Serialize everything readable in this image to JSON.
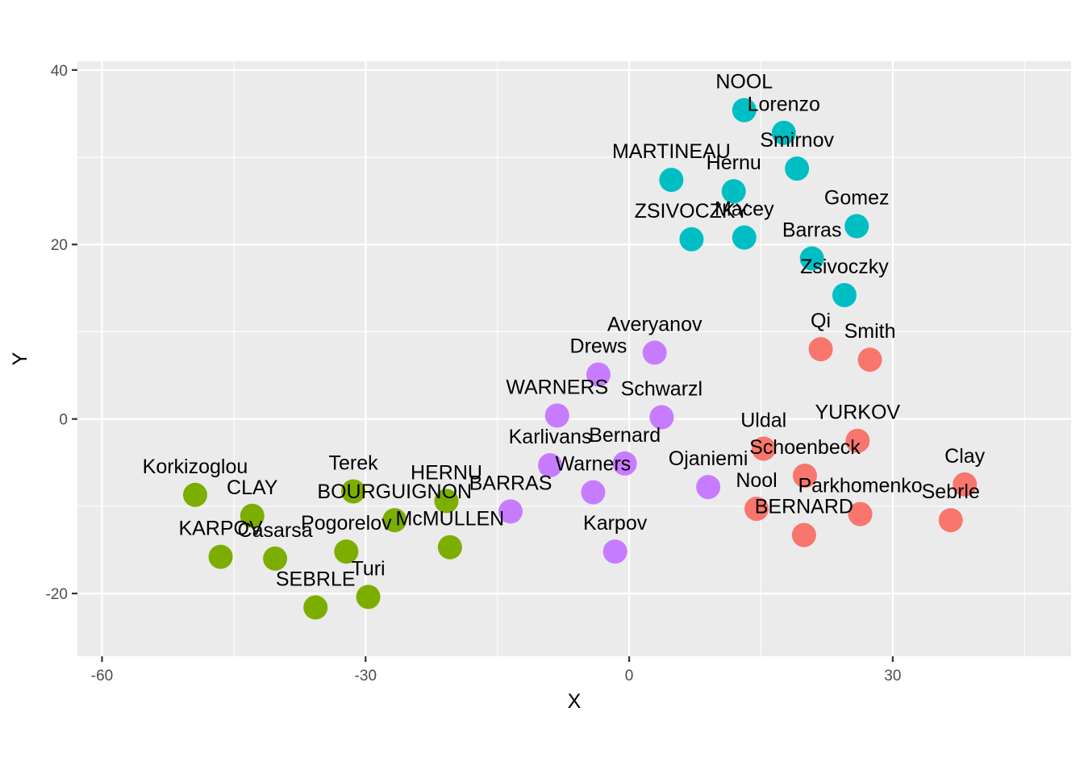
{
  "chart_data": {
    "type": "scatter",
    "xlabel": "X",
    "ylabel": "Y",
    "xlim": [
      -62.8,
      50.3
    ],
    "ylim": [
      -27.2,
      41.0
    ],
    "xticks": [
      -60,
      -30,
      0,
      30
    ],
    "yticks": [
      -20,
      0,
      20,
      40
    ],
    "grid": true,
    "legend": "none",
    "groups": [
      {
        "color": "#F8766D",
        "points": [
          {
            "label": "Qi",
            "x": 21.8,
            "y": 8.0
          },
          {
            "label": "Smith",
            "x": 27.4,
            "y": 6.8
          },
          {
            "label": "Uldal",
            "x": 15.3,
            "y": -3.4
          },
          {
            "label": "YURKOV",
            "x": 26.0,
            "y": -2.5
          },
          {
            "label": "Schoenbeck",
            "x": 20.0,
            "y": -6.5
          },
          {
            "label": "Clay",
            "x": 38.2,
            "y": -7.5
          },
          {
            "label": "Nool",
            "x": 14.5,
            "y": -10.3
          },
          {
            "label": "Parkhomenko",
            "x": 26.3,
            "y": -10.9
          },
          {
            "label": "Sebrle",
            "x": 36.6,
            "y": -11.6
          },
          {
            "label": "BERNARD",
            "x": 19.9,
            "y": -13.3
          }
        ]
      },
      {
        "color": "#7CAE00",
        "points": [
          {
            "label": "Korkizoglou",
            "x": -49.4,
            "y": -8.7
          },
          {
            "label": "Terek",
            "x": -31.4,
            "y": -8.3
          },
          {
            "label": "CLAY",
            "x": -42.9,
            "y": -11.1
          },
          {
            "label": "HERNU",
            "x": -20.8,
            "y": -9.4
          },
          {
            "label": "BOURGUIGNON",
            "x": -26.7,
            "y": -11.6
          },
          {
            "label": "McMULLEN",
            "x": -20.4,
            "y": -14.7
          },
          {
            "label": "KARPOV",
            "x": -46.5,
            "y": -15.8
          },
          {
            "label": "Casarsa",
            "x": -40.3,
            "y": -16.0
          },
          {
            "label": "SEBRLE",
            "x": -35.7,
            "y": -21.6
          },
          {
            "label": "Turi",
            "x": -29.7,
            "y": -20.4
          },
          {
            "label": "Pogorelov",
            "x": -32.2,
            "y": -15.2
          }
        ]
      },
      {
        "color": "#00BFC4",
        "points": [
          {
            "label": "NOOL",
            "x": 13.1,
            "y": 35.4
          },
          {
            "label": "Lorenzo",
            "x": 17.6,
            "y": 32.8
          },
          {
            "label": "Smirnov",
            "x": 19.1,
            "y": 28.7
          },
          {
            "label": "MARTINEAU",
            "x": 4.8,
            "y": 27.4
          },
          {
            "label": "Hernu",
            "x": 11.9,
            "y": 26.1
          },
          {
            "label": "Gomez",
            "x": 25.9,
            "y": 22.1
          },
          {
            "label": "ZSIVOCZKY",
            "x": 7.1,
            "y": 20.6
          },
          {
            "label": "Macey",
            "x": 13.1,
            "y": 20.8
          },
          {
            "label": "Barras",
            "x": 20.8,
            "y": 18.4
          },
          {
            "label": "Zsivoczky",
            "x": 24.5,
            "y": 14.2
          }
        ]
      },
      {
        "color": "#C77CFF",
        "points": [
          {
            "label": "Averyanov",
            "x": 2.9,
            "y": 7.6
          },
          {
            "label": "Drews",
            "x": -3.5,
            "y": 5.1
          },
          {
            "label": "WARNERS",
            "x": -8.2,
            "y": 0.4
          },
          {
            "label": "Schwarzl",
            "x": 3.7,
            "y": 0.2
          },
          {
            "label": "Karlivans",
            "x": -9.0,
            "y": -5.3
          },
          {
            "label": "Bernard",
            "x": -0.5,
            "y": -5.1
          },
          {
            "label": "Warners",
            "x": -4.1,
            "y": -8.4
          },
          {
            "label": "Ojaniemi",
            "x": 9.0,
            "y": -7.8
          },
          {
            "label": "BARRAS",
            "x": -13.5,
            "y": -10.6
          },
          {
            "label": "Karpov",
            "x": -1.6,
            "y": -15.2
          }
        ]
      }
    ]
  }
}
